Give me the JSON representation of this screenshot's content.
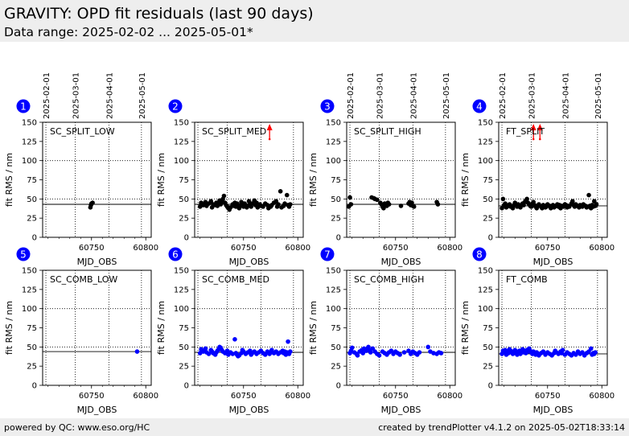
{
  "header": {
    "title": "GRAVITY: OPD fit residuals (last 90 days)",
    "subtitle": "Data range: 2025-02-02 ... 2025-05-01*"
  },
  "footer": {
    "left": "powered by QC: www.eso.org/HC",
    "right": "created by trendPlotter v4.1.2 on 2025-05-02T18:33:14"
  },
  "colors": {
    "black_points": "#000000",
    "blue_points": "#0000ff",
    "outlier_arrow": "#ff0000",
    "badge": "#0000ff",
    "header_bg": "#eeeeee"
  },
  "chart_data": [
    {
      "type": "scatter",
      "badge": "1",
      "label": "SC_SPLIT_LOW",
      "xlabel": "MJD_OBS",
      "ylabel": "fit RMS / nm",
      "xlim": [
        60705,
        60805
      ],
      "ylim": [
        0,
        150
      ],
      "xticks": [
        60750,
        60800
      ],
      "yticks": [
        0,
        25,
        50,
        75,
        100,
        125,
        150
      ],
      "date_ticks": [
        {
          "x": 60708,
          "label": "2025-02-01"
        },
        {
          "x": 60735,
          "label": "2025-03-01"
        },
        {
          "x": 60766,
          "label": "2025-04-01"
        },
        {
          "x": 60796,
          "label": "2025-05-01"
        }
      ],
      "ref_line": 43,
      "color": "black",
      "outliers": [],
      "x": [
        60749,
        60749.5,
        60750,
        60751
      ],
      "y": [
        39,
        42,
        44,
        45
      ]
    },
    {
      "type": "scatter",
      "badge": "2",
      "label": "SC_SPLIT_MED",
      "xlabel": "MJD_OBS",
      "ylabel": "fit RMS / nm",
      "xlim": [
        60705,
        60805
      ],
      "ylim": [
        0,
        150
      ],
      "xticks": [
        60750,
        60800
      ],
      "yticks": [
        0,
        25,
        50,
        75,
        100,
        125,
        150
      ],
      "date_ticks": [],
      "ref_line": 43,
      "color": "black",
      "outliers": [
        60774
      ],
      "x": [
        60710,
        60711,
        60712,
        60713,
        60715,
        60716,
        60718,
        60720,
        60721,
        60722,
        60724,
        60725,
        60726,
        60727,
        60728,
        60729,
        60730,
        60731,
        60732,
        60733,
        60734,
        60735,
        60736,
        60737,
        60738,
        60740,
        60741,
        60742,
        60743,
        60744,
        60745,
        60746,
        60747,
        60748,
        60749,
        60750,
        60751,
        60752,
        60753,
        60754,
        60755,
        60756,
        60757,
        60758,
        60760,
        60761,
        60762,
        60763,
        60765,
        60766,
        60768,
        60770,
        60772,
        60773,
        60775,
        60776,
        60778,
        60780,
        60781,
        60782,
        60784,
        60785,
        60787,
        60788,
        60790,
        60791,
        60792,
        60793
      ],
      "y": [
        40,
        45,
        43,
        42,
        46,
        41,
        44,
        47,
        39,
        43,
        42,
        45,
        41,
        44,
        48,
        43,
        46,
        50,
        54,
        45,
        42,
        40,
        38,
        36,
        39,
        43,
        41,
        45,
        40,
        44,
        42,
        38,
        41,
        46,
        43,
        40,
        44,
        42,
        39,
        41,
        47,
        43,
        40,
        44,
        48,
        42,
        45,
        39,
        43,
        41,
        40,
        44,
        42,
        38,
        40,
        42,
        45,
        47,
        40,
        43,
        60,
        39,
        41,
        44,
        55,
        42,
        40,
        43
      ]
    },
    {
      "type": "scatter",
      "badge": "3",
      "label": "SC_SPLIT_HIGH",
      "xlabel": "MJD_OBS",
      "ylabel": "fit RMS / nm",
      "xlim": [
        60705,
        60805
      ],
      "ylim": [
        0,
        150
      ],
      "xticks": [
        60750,
        60800
      ],
      "yticks": [
        0,
        25,
        50,
        75,
        100,
        125,
        150
      ],
      "date_ticks": [
        {
          "x": 60708,
          "label": "2025-02-01"
        },
        {
          "x": 60735,
          "label": "2025-03-01"
        },
        {
          "x": 60766,
          "label": "2025-04-01"
        },
        {
          "x": 60796,
          "label": "2025-05-01"
        }
      ],
      "ref_line": 43,
      "color": "black",
      "outliers": [],
      "x": [
        60707,
        60708,
        60709,
        60728,
        60730,
        60731,
        60733,
        60736,
        60737,
        60738,
        60739,
        60740,
        60741,
        60742,
        60743,
        60744,
        60755,
        60762,
        60763,
        60764,
        60765,
        60766,
        60767,
        60788,
        60789
      ],
      "y": [
        40,
        52,
        43,
        52,
        51,
        50,
        49,
        45,
        43,
        40,
        38,
        44,
        42,
        41,
        45,
        43,
        41,
        44,
        46,
        42,
        45,
        41,
        40,
        46,
        43
      ]
    },
    {
      "type": "scatter",
      "badge": "4",
      "label": "FT_SPLIT",
      "xlabel": "MJD_OBS",
      "ylabel": "fit RMS / nm",
      "xlim": [
        60705,
        60805
      ],
      "ylim": [
        0,
        150
      ],
      "xticks": [
        60750,
        60800
      ],
      "yticks": [
        0,
        25,
        50,
        75,
        100,
        125,
        150
      ],
      "date_ticks": [
        {
          "x": 60708,
          "label": "2025-02-01"
        },
        {
          "x": 60735,
          "label": "2025-03-01"
        },
        {
          "x": 60766,
          "label": "2025-04-01"
        },
        {
          "x": 60796,
          "label": "2025-05-01"
        }
      ],
      "ref_line": 41,
      "color": "black",
      "outliers": [
        60737,
        60743
      ],
      "x": [
        60708,
        60709,
        60710,
        60711,
        60712,
        60714,
        60715,
        60716,
        60718,
        60719,
        60720,
        60722,
        60723,
        60724,
        60725,
        60727,
        60728,
        60729,
        60730,
        60731,
        60732,
        60733,
        60734,
        60735,
        60736,
        60737,
        60738,
        60739,
        60740,
        60741,
        60742,
        60744,
        60745,
        60746,
        60747,
        60748,
        60749,
        60750,
        60752,
        60753,
        60754,
        60755,
        60756,
        60758,
        60759,
        60760,
        60761,
        60762,
        60763,
        60765,
        60766,
        60767,
        60768,
        60769,
        60770,
        60772,
        60773,
        60774,
        60775,
        60776,
        60778,
        60779,
        60780,
        60782,
        60783,
        60785,
        60786,
        60787,
        60788,
        60789,
        60790,
        60791,
        60792,
        60793,
        60794,
        60795
      ],
      "y": [
        38,
        50,
        42,
        44,
        39,
        41,
        43,
        40,
        38,
        42,
        45,
        40,
        43,
        41,
        39,
        44,
        42,
        46,
        48,
        50,
        45,
        43,
        41,
        40,
        44,
        46,
        42,
        40,
        38,
        41,
        43,
        40,
        38,
        42,
        41,
        39,
        40,
        43,
        41,
        38,
        40,
        42,
        39,
        41,
        43,
        40,
        42,
        38,
        41,
        40,
        43,
        42,
        39,
        41,
        40,
        44,
        47,
        42,
        40,
        43,
        41,
        39,
        42,
        40,
        43,
        41,
        39,
        40,
        55,
        41,
        38,
        42,
        40,
        47,
        41,
        43
      ]
    },
    {
      "type": "scatter",
      "badge": "5",
      "label": "SC_COMB_LOW",
      "xlabel": "MJD_OBS",
      "ylabel": "fit RMS / nm",
      "xlim": [
        60705,
        60805
      ],
      "ylim": [
        0,
        150
      ],
      "xticks": [
        60750,
        60800
      ],
      "yticks": [
        0,
        25,
        50,
        75,
        100,
        125,
        150
      ],
      "date_ticks": [],
      "ref_line": 44,
      "color": "blue",
      "outliers": [],
      "x": [
        60792
      ],
      "y": [
        44
      ]
    },
    {
      "type": "scatter",
      "badge": "6",
      "label": "SC_COMB_MED",
      "xlabel": "MJD_OBS",
      "ylabel": "fit RMS / nm",
      "xlim": [
        60705,
        60805
      ],
      "ylim": [
        0,
        150
      ],
      "xticks": [
        60750,
        60800
      ],
      "yticks": [
        0,
        25,
        50,
        75,
        100,
        125,
        150
      ],
      "date_ticks": [],
      "ref_line": 43,
      "color": "blue",
      "outliers": [],
      "x": [
        60710,
        60711,
        60712,
        60713,
        60715,
        60716,
        60718,
        60720,
        60721,
        60722,
        60724,
        60725,
        60726,
        60727,
        60728,
        60729,
        60730,
        60731,
        60733,
        60735,
        60736,
        60738,
        60740,
        60742,
        60743,
        60744,
        60745,
        60746,
        60748,
        60749,
        60750,
        60752,
        60754,
        60756,
        60757,
        60758,
        60760,
        60762,
        60764,
        60766,
        60768,
        60770,
        60772,
        60774,
        60775,
        60776,
        60778,
        60780,
        60782,
        60784,
        60786,
        60787,
        60788,
        60789,
        60790,
        60791,
        60792,
        60793
      ],
      "y": [
        42,
        47,
        45,
        44,
        48,
        43,
        41,
        46,
        44,
        42,
        40,
        43,
        45,
        47,
        50,
        49,
        46,
        44,
        42,
        45,
        40,
        43,
        41,
        60,
        42,
        40,
        38,
        39,
        42,
        46,
        44,
        41,
        43,
        45,
        40,
        42,
        44,
        41,
        43,
        45,
        42,
        40,
        44,
        41,
        43,
        46,
        42,
        44,
        41,
        43,
        45,
        42,
        44,
        40,
        43,
        57,
        41,
        44
      ]
    },
    {
      "type": "scatter",
      "badge": "7",
      "label": "SC_COMB_HIGH",
      "xlabel": "MJD_OBS",
      "ylabel": "fit RMS / nm",
      "xlim": [
        60705,
        60805
      ],
      "ylim": [
        0,
        150
      ],
      "xticks": [
        60750,
        60800
      ],
      "yticks": [
        0,
        25,
        50,
        75,
        100,
        125,
        150
      ],
      "date_ticks": [],
      "ref_line": 43,
      "color": "blue",
      "outliers": [],
      "x": [
        60708,
        60709,
        60710,
        60712,
        60714,
        60715,
        60717,
        60719,
        60720,
        60721,
        60723,
        60724,
        60725,
        60726,
        60727,
        60729,
        60731,
        60733,
        60735,
        60738,
        60740,
        60742,
        60744,
        60746,
        60748,
        60750,
        60752,
        60754,
        60758,
        60762,
        60764,
        60766,
        60768,
        60770,
        60772,
        60780,
        60782,
        60785,
        60788,
        60790,
        60792
      ],
      "y": [
        42,
        45,
        49,
        43,
        41,
        39,
        44,
        46,
        42,
        48,
        45,
        47,
        50,
        46,
        43,
        48,
        44,
        41,
        39,
        44,
        42,
        40,
        43,
        45,
        41,
        44,
        42,
        40,
        43,
        45,
        41,
        44,
        42,
        40,
        43,
        50,
        44,
        42,
        41,
        43,
        42
      ]
    },
    {
      "type": "scatter",
      "badge": "8",
      "label": "FT_COMB",
      "xlabel": "MJD_OBS",
      "ylabel": "fit RMS / nm",
      "xlim": [
        60705,
        60805
      ],
      "ylim": [
        0,
        150
      ],
      "xticks": [
        60750,
        60800
      ],
      "yticks": [
        0,
        25,
        50,
        75,
        100,
        125,
        150
      ],
      "date_ticks": [],
      "ref_line": 41,
      "color": "blue",
      "outliers": [],
      "x": [
        60708,
        60709,
        60710,
        60711,
        60712,
        60713,
        60714,
        60715,
        60716,
        60717,
        60718,
        60719,
        60720,
        60721,
        60722,
        60723,
        60724,
        60725,
        60726,
        60727,
        60728,
        60729,
        60730,
        60731,
        60732,
        60733,
        60734,
        60735,
        60736,
        60737,
        60738,
        60739,
        60740,
        60741,
        60742,
        60744,
        60746,
        60748,
        60750,
        60752,
        60754,
        60756,
        60757,
        60758,
        60760,
        60762,
        60763,
        60764,
        60766,
        60768,
        60770,
        60772,
        60774,
        60776,
        60778,
        60780,
        60782,
        60784,
        60786,
        60788,
        60790,
        60791,
        60792,
        60793,
        60794
      ],
      "y": [
        41,
        45,
        43,
        46,
        40,
        44,
        42,
        47,
        45,
        43,
        41,
        44,
        46,
        42,
        40,
        43,
        45,
        41,
        44,
        47,
        43,
        45,
        42,
        46,
        44,
        48,
        45,
        43,
        41,
        44,
        42,
        40,
        43,
        41,
        39,
        42,
        44,
        40,
        43,
        41,
        39,
        42,
        45,
        43,
        41,
        44,
        42,
        46,
        40,
        43,
        41,
        39,
        42,
        40,
        44,
        41,
        43,
        39,
        42,
        44,
        48,
        40,
        42,
        41,
        43
      ]
    }
  ]
}
